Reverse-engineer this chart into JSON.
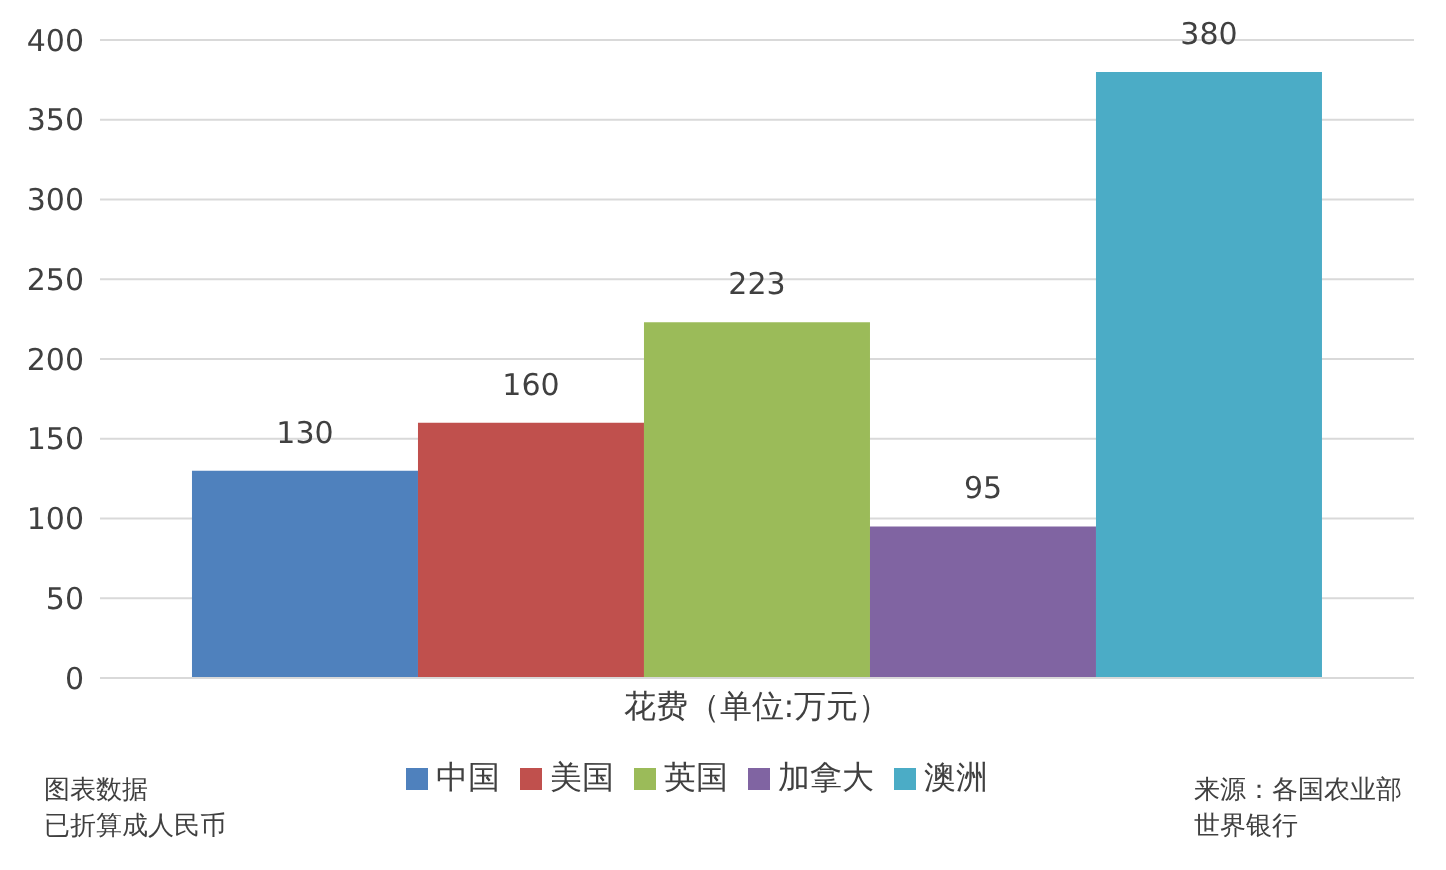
{
  "chart_data": {
    "type": "bar",
    "categories": [
      "花费（单位:万元）"
    ],
    "series": [
      {
        "name": "中国",
        "color": "#4f81bd",
        "values": [
          130
        ]
      },
      {
        "name": "美国",
        "color": "#c0504d",
        "values": [
          160
        ]
      },
      {
        "name": "英国",
        "color": "#9bbb59",
        "values": [
          223
        ]
      },
      {
        "name": "加拿大",
        "color": "#8064a2",
        "values": [
          95
        ]
      },
      {
        "name": "澳洲",
        "color": "#4bacc6",
        "values": [
          380
        ]
      }
    ],
    "ylim": [
      0,
      400
    ],
    "yticks": [
      0,
      50,
      100,
      150,
      200,
      250,
      300,
      350,
      400
    ],
    "grid": "y",
    "legend": "bottom",
    "data_labels": true,
    "annotations": [
      "图表数据",
      "已折算成人民币",
      "来源：各国农业部",
      "世界银行"
    ]
  }
}
